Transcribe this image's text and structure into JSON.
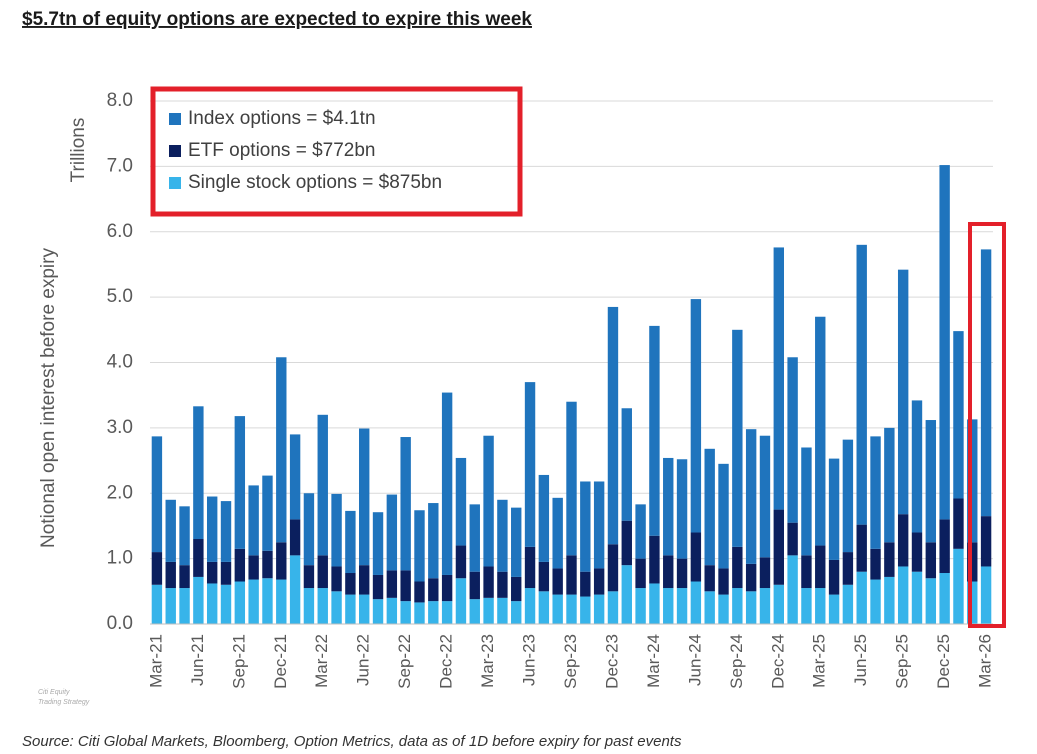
{
  "chart_data": {
    "type": "stacked_bar",
    "title": "$5.7tn of equity options are expected to expire this week",
    "y_label": "Notional open interest before expiry",
    "y_unit": "Trillions",
    "source": "Source: Citi Global Markets, Bloomberg, Option Metrics, data as of 1D before expiry for past events",
    "watermark": [
      "Citi Equity",
      "Trading Strategy"
    ],
    "ylim": [
      0,
      8
    ],
    "yticks": [
      {
        "value": 0,
        "label": "0.0"
      },
      {
        "value": 1,
        "label": "1.0"
      },
      {
        "value": 2,
        "label": "2.0"
      },
      {
        "value": 3,
        "label": "3.0"
      },
      {
        "value": 4,
        "label": "4.0"
      },
      {
        "value": 5,
        "label": "5.0"
      },
      {
        "value": 6,
        "label": "6.0"
      },
      {
        "value": 7,
        "label": "7.0"
      },
      {
        "value": 8,
        "label": "8.0"
      }
    ],
    "grid": true,
    "legend": "top-left",
    "categories": [
      "Mar-21",
      null,
      null,
      "Jun-21",
      null,
      null,
      "Sep-21",
      null,
      null,
      "Dec-21",
      null,
      null,
      "Mar-22",
      null,
      null,
      "Jun-22",
      null,
      null,
      "Sep-22",
      null,
      null,
      "Dec-22",
      null,
      null,
      "Mar-23",
      null,
      null,
      "Jun-23",
      null,
      null,
      "Sep-23",
      null,
      null,
      "Dec-23",
      null,
      null,
      "Mar-24",
      null,
      null,
      "Jun-24",
      null,
      null,
      "Sep-24",
      null,
      null,
      "Dec-24",
      null,
      null,
      "Mar-25",
      null,
      null,
      "Jun-25",
      null,
      null,
      "Sep-25",
      null,
      null,
      "Dec-25",
      null,
      null,
      "Mar-26"
    ],
    "series": [
      {
        "name": "Single stock options = $875bn",
        "color": "#37b4ea",
        "values": [
          0.6,
          0.55,
          0.55,
          0.72,
          0.62,
          0.6,
          0.65,
          0.68,
          0.7,
          0.68,
          1.05,
          0.55,
          0.55,
          0.5,
          0.45,
          0.45,
          0.38,
          0.4,
          0.35,
          0.33,
          0.35,
          0.35,
          0.7,
          0.38,
          0.4,
          0.4,
          0.35,
          0.55,
          0.5,
          0.45,
          0.45,
          0.42,
          0.45,
          0.5,
          0.9,
          0.55,
          0.62,
          0.55,
          0.55,
          0.65,
          0.5,
          0.45,
          0.55,
          0.5,
          0.55,
          0.6,
          1.05,
          0.55,
          0.55,
          0.45,
          0.6,
          0.8,
          0.68,
          0.72,
          0.88,
          0.8,
          0.7,
          0.78,
          1.15,
          0.65,
          0.88
        ]
      },
      {
        "name": "ETF options = $772bn",
        "color": "#0b1f5e",
        "values": [
          0.5,
          0.4,
          0.35,
          0.58,
          0.33,
          0.35,
          0.5,
          0.37,
          0.42,
          0.57,
          0.55,
          0.35,
          0.5,
          0.38,
          0.33,
          0.45,
          0.37,
          0.42,
          0.47,
          0.32,
          0.35,
          0.4,
          0.5,
          0.42,
          0.48,
          0.4,
          0.37,
          0.63,
          0.45,
          0.4,
          0.6,
          0.38,
          0.4,
          0.72,
          0.68,
          0.45,
          0.73,
          0.5,
          0.45,
          0.75,
          0.4,
          0.4,
          0.63,
          0.42,
          0.47,
          1.15,
          0.5,
          0.5,
          0.65,
          0.53,
          0.5,
          0.72,
          0.47,
          0.53,
          0.8,
          0.6,
          0.55,
          0.82,
          0.77,
          0.6,
          0.77
        ]
      },
      {
        "name": "Index options = $4.1tn",
        "color": "#1f74bd",
        "values": [
          1.77,
          0.95,
          0.9,
          2.03,
          1.0,
          0.93,
          2.03,
          1.07,
          1.15,
          2.83,
          1.3,
          1.1,
          2.15,
          1.11,
          0.95,
          2.09,
          0.96,
          1.16,
          2.04,
          1.09,
          1.15,
          2.79,
          1.34,
          1.03,
          2.0,
          1.1,
          1.06,
          2.52,
          1.33,
          1.08,
          2.35,
          1.38,
          1.33,
          3.63,
          1.72,
          0.83,
          3.21,
          1.49,
          1.52,
          3.57,
          1.78,
          1.6,
          3.32,
          2.06,
          1.86,
          4.01,
          2.53,
          1.65,
          3.5,
          1.55,
          1.72,
          4.28,
          1.72,
          1.75,
          3.74,
          2.02,
          1.87,
          5.42,
          2.56,
          1.88,
          4.08
        ]
      }
    ]
  }
}
